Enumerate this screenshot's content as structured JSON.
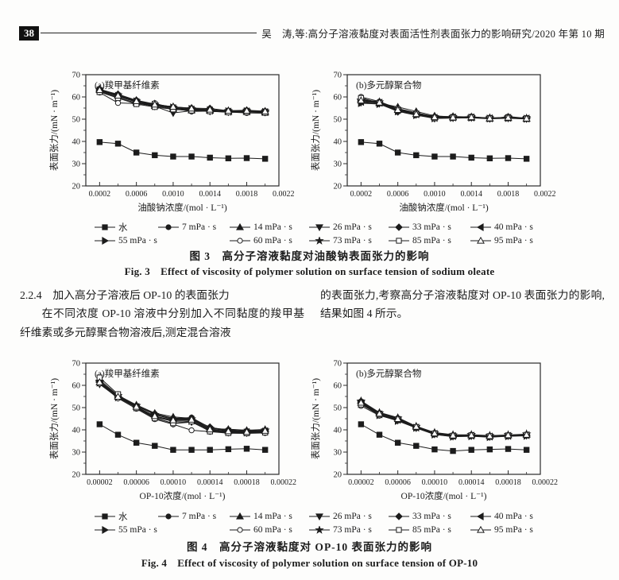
{
  "page": {
    "page_number": "38",
    "header_text": "吴　涛,等:高分子溶液黏度对表面活性剂表面张力的影响研究/2020 年第 10 期"
  },
  "body": {
    "section_heading": "2.2.4　加入高分子溶液后 OP-10 的表面张力",
    "left_paragraph": "在不同浓度 OP-10 溶液中分别加入不同黏度的羧甲基纤维素或多元醇聚合物溶液后,测定混合溶液",
    "right_paragraph": "的表面张力,考察高分子溶液黏度对 OP-10 表面张力的影响,结果如图 4 所示。"
  },
  "figure3": {
    "caption_zh": "图 3　高分子溶液黏度对油酸钠表面张力的影响",
    "caption_en": "Fig. 3　Effect of viscosity of polymer solution on surface tension of sodium oleate"
  },
  "figure4": {
    "caption_zh": "图 4　高分子溶液黏度对 OP-10 表面张力的影响",
    "caption_en": "Fig. 4　Effect of viscosity of polymer solution on surface tension of OP-10"
  },
  "legend": {
    "row1": [
      {
        "label": "水",
        "marker": "square-filled"
      },
      {
        "label": "7 mPa · s",
        "marker": "circle-filled"
      },
      {
        "label": "14 mPa · s",
        "marker": "triangle-up-filled"
      },
      {
        "label": "26 mPa · s",
        "marker": "triangle-down-filled"
      },
      {
        "label": "33 mPa · s",
        "marker": "diamond-filled"
      },
      {
        "label": "40 mPa · s",
        "marker": "triangle-left-filled"
      }
    ],
    "row2": [
      {
        "label": "55 mPa · s",
        "marker": "triangle-right-filled"
      },
      {
        "label": "60 mPa · s",
        "marker": "circle-open"
      },
      {
        "label": "73 mPa · s",
        "marker": "star-filled"
      },
      {
        "label": "85 mPa · s",
        "marker": "square-open"
      },
      {
        "label": "95 mPa · s",
        "marker": "triangle-up-open"
      }
    ],
    "row1_slot_widths": [
      80,
      90,
      100,
      100,
      103,
      100
    ],
    "row2_slot_widths": [
      170,
      100,
      100,
      103,
      100
    ]
  },
  "colors": {
    "ink": "#1c1c1c",
    "axis": "#2a2a2a",
    "paper": "#fdfdfc"
  },
  "chart_data": [
    {
      "id": "fig3a",
      "type": "line",
      "inner_label": "(a)羧甲基纤维素",
      "xlabel": "油酸钠浓度/(mol · L⁻¹)",
      "ylabel": "表面张力/(mN · m⁻¹)",
      "xlim": [
        5e-05,
        0.00215
      ],
      "ylim": [
        20,
        70
      ],
      "xticks": [
        0.0002,
        0.0006,
        0.001,
        0.0014,
        0.0018,
        0.0022
      ],
      "xtick_labels": [
        "0.0002",
        "0.0006",
        "0.0010",
        "0.0014",
        "0.0018",
        "0.0022"
      ],
      "yticks": [
        20,
        30,
        40,
        50,
        60,
        70
      ],
      "x": [
        0.0002,
        0.0004,
        0.0006,
        0.0008,
        0.001,
        0.0012,
        0.0014,
        0.0016,
        0.0018,
        0.002
      ],
      "series": [
        {
          "name": "水",
          "marker": "square-filled",
          "values": [
            39.7,
            39.0,
            35.0,
            33.8,
            33.2,
            33.2,
            32.7,
            32.4,
            32.5,
            32.2
          ]
        },
        {
          "name": "7 mPa · s",
          "marker": "circle-filled",
          "values": [
            63.3,
            60.8,
            58.2,
            56.6,
            55.0,
            54.2,
            54.4,
            53.4,
            53.6,
            53.4
          ]
        },
        {
          "name": "14 mPa · s",
          "marker": "triangle-up-filled",
          "values": [
            63.5,
            61.0,
            57.5,
            56.0,
            54.6,
            54.0,
            53.8,
            53.3,
            53.3,
            53.0
          ]
        },
        {
          "name": "26 mPa · s",
          "marker": "triangle-down-filled",
          "values": [
            62.5,
            59.8,
            57.2,
            55.8,
            52.8,
            53.8,
            53.5,
            53.2,
            53.4,
            53.1
          ]
        },
        {
          "name": "33 mPa · s",
          "marker": "diamond-filled",
          "values": [
            63.2,
            61.2,
            58.5,
            56.8,
            55.5,
            55.0,
            54.8,
            53.8,
            54.0,
            53.6
          ]
        },
        {
          "name": "40 mPa · s",
          "marker": "triangle-left-filled",
          "values": [
            62.8,
            60.2,
            57.7,
            56.2,
            55.0,
            54.3,
            53.9,
            53.4,
            53.5,
            53.2
          ]
        },
        {
          "name": "55 mPa · s",
          "marker": "triangle-right-filled",
          "values": [
            63.0,
            60.5,
            58.0,
            56.5,
            55.3,
            54.6,
            54.1,
            53.6,
            53.6,
            53.3
          ]
        },
        {
          "name": "60 mPa · s",
          "marker": "circle-open",
          "values": [
            62.0,
            57.3,
            57.0,
            57.2,
            54.8,
            53.5,
            53.6,
            53.2,
            52.8,
            52.7
          ]
        },
        {
          "name": "73 mPa · s",
          "marker": "star-filled",
          "values": [
            63.4,
            60.9,
            58.3,
            56.7,
            55.4,
            54.7,
            54.2,
            53.7,
            53.7,
            53.4
          ]
        },
        {
          "name": "85 mPa · s",
          "marker": "square-open",
          "values": [
            62.2,
            59.5,
            56.8,
            55.5,
            54.4,
            53.9,
            53.6,
            53.1,
            53.2,
            52.9
          ]
        },
        {
          "name": "95 mPa · s",
          "marker": "triangle-up-open",
          "values": [
            63.1,
            60.6,
            58.1,
            56.6,
            55.6,
            54.8,
            54.3,
            53.8,
            53.8,
            53.5
          ]
        }
      ]
    },
    {
      "id": "fig3b",
      "type": "line",
      "inner_label": "(b)多元醇聚合物",
      "xlabel": "油酸钠浓度/(mol · L⁻¹)",
      "ylabel": "表面张力/(mN · m⁻¹)",
      "xlim": [
        5e-05,
        0.00215
      ],
      "ylim": [
        20,
        70
      ],
      "xticks": [
        0.0002,
        0.0006,
        0.001,
        0.0014,
        0.0018,
        0.0022
      ],
      "xtick_labels": [
        "0.0002",
        "0.0006",
        "0.0010",
        "0.0014",
        "0.0018",
        "0.0022"
      ],
      "yticks": [
        20,
        30,
        40,
        50,
        60,
        70
      ],
      "x": [
        0.0002,
        0.0004,
        0.0006,
        0.0008,
        0.001,
        0.0012,
        0.0014,
        0.0016,
        0.0018,
        0.002
      ],
      "series": [
        {
          "name": "水",
          "marker": "square-filled",
          "values": [
            39.7,
            39.0,
            35.0,
            33.8,
            33.2,
            33.2,
            32.7,
            32.4,
            32.5,
            32.2
          ]
        },
        {
          "name": "7 mPa · s",
          "marker": "circle-filled",
          "values": [
            58.8,
            57.8,
            54.6,
            52.6,
            50.8,
            50.7,
            51.1,
            50.4,
            50.9,
            50.5
          ]
        },
        {
          "name": "14 mPa · s",
          "marker": "triangle-up-filled",
          "values": [
            59.0,
            57.2,
            55.5,
            53.5,
            51.5,
            51.0,
            50.7,
            50.3,
            50.5,
            50.2
          ]
        },
        {
          "name": "26 mPa · s",
          "marker": "triangle-down-filled",
          "values": [
            57.5,
            57.0,
            53.8,
            52.0,
            50.3,
            50.5,
            50.6,
            50.2,
            50.4,
            50.1
          ]
        },
        {
          "name": "33 mPa · s",
          "marker": "diamond-filled",
          "values": [
            58.2,
            57.6,
            53.3,
            52.8,
            51.2,
            51.2,
            51.0,
            50.6,
            50.7,
            50.4
          ]
        },
        {
          "name": "40 mPa · s",
          "marker": "triangle-left-filled",
          "values": [
            57.8,
            57.4,
            54.1,
            52.2,
            50.6,
            50.8,
            50.8,
            50.4,
            50.6,
            50.3
          ]
        },
        {
          "name": "55 mPa · s",
          "marker": "triangle-right-filled",
          "values": [
            57.2,
            56.8,
            53.5,
            51.8,
            50.4,
            50.6,
            50.7,
            50.3,
            50.5,
            50.2
          ]
        },
        {
          "name": "60 mPa · s",
          "marker": "circle-open",
          "values": [
            60.0,
            57.9,
            54.8,
            52.9,
            51.0,
            50.9,
            51.2,
            50.1,
            51.2,
            50.4
          ]
        },
        {
          "name": "73 mPa · s",
          "marker": "star-filled",
          "values": [
            58.6,
            57.7,
            54.4,
            52.5,
            51.1,
            51.0,
            50.9,
            50.5,
            50.8,
            50.4
          ]
        },
        {
          "name": "85 mPa · s",
          "marker": "square-open",
          "values": [
            59.5,
            57.3,
            54.0,
            52.1,
            50.5,
            50.7,
            50.8,
            50.3,
            50.6,
            50.2
          ]
        },
        {
          "name": "95 mPa · s",
          "marker": "triangle-up-open",
          "values": [
            58.4,
            57.5,
            54.2,
            52.3,
            50.9,
            50.8,
            50.9,
            50.4,
            50.7,
            50.3
          ]
        }
      ]
    },
    {
      "id": "fig4a",
      "type": "line",
      "inner_label": "(a)羧甲基纤维素",
      "xlabel": "OP-10浓度/(mol · L⁻¹)",
      "ylabel": "表面张力/(mN · m⁻¹)",
      "xlim": [
        5e-06,
        0.000215
      ],
      "ylim": [
        20,
        70
      ],
      "xticks": [
        2e-05,
        6e-05,
        0.0001,
        0.00014,
        0.00018,
        0.00022
      ],
      "xtick_labels": [
        "0.00002",
        "0.00006",
        "0.00010",
        "0.00014",
        "0.00018",
        "0.00022"
      ],
      "yticks": [
        20,
        30,
        40,
        50,
        60,
        70
      ],
      "x": [
        2e-05,
        4e-05,
        6e-05,
        8e-05,
        0.0001,
        0.00012,
        0.00014,
        0.00016,
        0.00018,
        0.0002
      ],
      "series": [
        {
          "name": "水",
          "marker": "square-filled",
          "values": [
            42.5,
            37.8,
            34.2,
            32.8,
            31.0,
            31.0,
            31.0,
            31.3,
            31.5,
            31.0
          ]
        },
        {
          "name": "7 mPa · s",
          "marker": "circle-filled",
          "values": [
            61.0,
            54.8,
            50.8,
            47.2,
            45.2,
            45.5,
            41.0,
            40.0,
            39.5,
            39.8
          ]
        },
        {
          "name": "14 mPa · s",
          "marker": "triangle-up-filled",
          "values": [
            62.5,
            55.5,
            51.2,
            47.5,
            45.8,
            45.2,
            40.5,
            40.3,
            39.8,
            40.2
          ]
        },
        {
          "name": "26 mPa · s",
          "marker": "triangle-down-filled",
          "values": [
            60.5,
            54.5,
            50.0,
            45.5,
            42.8,
            43.5,
            39.5,
            38.8,
            38.6,
            39.0
          ]
        },
        {
          "name": "33 mPa · s",
          "marker": "diamond-filled",
          "values": [
            61.5,
            55.2,
            50.6,
            47.0,
            45.0,
            45.0,
            41.2,
            39.6,
            39.3,
            39.7
          ]
        },
        {
          "name": "40 mPa · s",
          "marker": "triangle-left-filled",
          "values": [
            62.0,
            55.0,
            50.3,
            46.0,
            44.2,
            44.5,
            40.0,
            39.2,
            39.0,
            39.4
          ]
        },
        {
          "name": "55 mPa · s",
          "marker": "triangle-right-filled",
          "values": [
            61.2,
            54.6,
            50.1,
            45.8,
            43.8,
            44.0,
            39.8,
            39.0,
            38.8,
            39.2
          ]
        },
        {
          "name": "60 mPa · s",
          "marker": "circle-open",
          "values": [
            60.8,
            54.2,
            49.5,
            44.8,
            42.5,
            39.8,
            39.2,
            38.5,
            38.4,
            38.6
          ]
        },
        {
          "name": "73 mPa · s",
          "marker": "star-filled",
          "values": [
            61.8,
            55.4,
            50.9,
            46.8,
            44.6,
            44.9,
            40.6,
            39.7,
            39.4,
            39.9
          ]
        },
        {
          "name": "85 mPa · s",
          "marker": "square-open",
          "values": [
            63.5,
            56.0,
            49.8,
            45.2,
            43.0,
            43.8,
            39.3,
            38.6,
            38.5,
            38.8
          ]
        },
        {
          "name": "95 mPa · s",
          "marker": "triangle-up-open",
          "values": [
            61.4,
            54.9,
            50.4,
            46.2,
            44.3,
            44.6,
            40.2,
            39.4,
            39.1,
            39.6
          ]
        }
      ]
    },
    {
      "id": "fig4b",
      "type": "line",
      "inner_label": "(b)多元醇聚合物",
      "xlabel": "OP-10浓度/(mol · L⁻¹)",
      "ylabel": "表面张力/(mN · m⁻¹)",
      "xlim": [
        5e-06,
        0.000215
      ],
      "ylim": [
        20,
        70
      ],
      "xticks": [
        2e-05,
        6e-05,
        0.0001,
        0.00014,
        0.00018,
        0.00022
      ],
      "xtick_labels": [
        "0.00002",
        "0.00006",
        "0.00010",
        "0.00014",
        "0.00018",
        "0.00022"
      ],
      "yticks": [
        20,
        30,
        40,
        50,
        60,
        70
      ],
      "x": [
        2e-05,
        4e-05,
        6e-05,
        8e-05,
        0.0001,
        0.00012,
        0.00014,
        0.00016,
        0.00018,
        0.0002
      ],
      "series": [
        {
          "name": "水",
          "marker": "square-filled",
          "values": [
            42.5,
            37.8,
            34.2,
            32.8,
            31.2,
            30.5,
            31.0,
            31.2,
            31.4,
            31.0
          ]
        },
        {
          "name": "7 mPa · s",
          "marker": "circle-filled",
          "values": [
            52.8,
            47.5,
            45.2,
            41.4,
            38.2,
            37.4,
            37.8,
            37.0,
            37.4,
            37.9
          ]
        },
        {
          "name": "14 mPa · s",
          "marker": "triangle-up-filled",
          "values": [
            53.0,
            47.8,
            45.5,
            41.6,
            38.8,
            37.8,
            37.6,
            37.4,
            37.6,
            38.0
          ]
        },
        {
          "name": "26 mPa · s",
          "marker": "triangle-down-filled",
          "values": [
            51.8,
            46.8,
            44.2,
            40.8,
            38.0,
            37.0,
            37.2,
            36.8,
            37.2,
            37.4
          ]
        },
        {
          "name": "33 mPa · s",
          "marker": "diamond-filled",
          "values": [
            52.5,
            47.4,
            45.0,
            41.3,
            38.5,
            37.6,
            37.7,
            37.3,
            37.5,
            37.8
          ]
        },
        {
          "name": "40 mPa · s",
          "marker": "triangle-left-filled",
          "values": [
            52.0,
            47.0,
            44.5,
            41.0,
            38.2,
            37.2,
            37.4,
            37.0,
            37.3,
            37.6
          ]
        },
        {
          "name": "55 mPa · s",
          "marker": "triangle-right-filled",
          "values": [
            51.6,
            46.6,
            44.0,
            40.9,
            37.9,
            36.9,
            37.1,
            36.7,
            37.1,
            37.3
          ]
        },
        {
          "name": "60 mPa · s",
          "marker": "circle-open",
          "values": [
            50.8,
            46.4,
            44.3,
            41.1,
            38.6,
            37.3,
            37.5,
            36.9,
            37.7,
            37.5
          ]
        },
        {
          "name": "73 mPa · s",
          "marker": "star-filled",
          "values": [
            52.9,
            47.6,
            45.3,
            41.5,
            38.7,
            37.7,
            37.8,
            37.4,
            37.7,
            38.1
          ]
        },
        {
          "name": "85 mPa · s",
          "marker": "square-open",
          "values": [
            51.4,
            46.9,
            44.6,
            41.2,
            38.3,
            37.3,
            37.5,
            37.1,
            37.4,
            37.7
          ]
        },
        {
          "name": "95 mPa · s",
          "marker": "triangle-up-open",
          "values": [
            52.2,
            47.3,
            44.9,
            41.4,
            38.4,
            37.5,
            37.6,
            37.2,
            37.6,
            37.8
          ]
        }
      ]
    }
  ]
}
